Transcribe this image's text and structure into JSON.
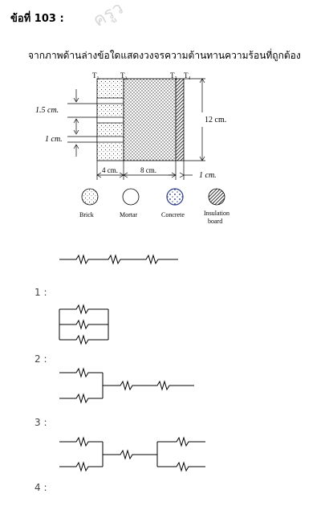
{
  "question": {
    "title": "ข้อที่ 103 :",
    "prompt": "จากภาพด้านล่างข้อใดแสดงวงจรความต้านทานความร้อนที่ถูกต้อง"
  },
  "watermark": "ครูว",
  "figure": {
    "temp_labels": [
      "T₁",
      "T₂",
      "T₃",
      "T₄"
    ],
    "dim_brick": "1.5 cm.",
    "dim_mortar": "1 cm.",
    "dim_height": "12 cm.",
    "dim_brick_width": "4 cm.",
    "dim_concrete_width": "8 cm.",
    "dim_insulation_width": "1 cm."
  },
  "legend": [
    {
      "label": "Brick",
      "icon": "brick-icon"
    },
    {
      "label": "Mortar",
      "icon": "mortar-icon"
    },
    {
      "label": "Concrete",
      "icon": "concrete-icon"
    },
    {
      "label": "Insulation board",
      "icon": "insulation-icon"
    }
  ],
  "options": [
    {
      "number": "1 :",
      "circuit": "series of three resistors"
    },
    {
      "number": "2 :",
      "circuit": "three resistors in parallel"
    },
    {
      "number": "3 :",
      "circuit": "two parallel resistors in series with two resistors"
    },
    {
      "number": "4 :",
      "circuit": "two parallel, one series, two parallel"
    }
  ]
}
